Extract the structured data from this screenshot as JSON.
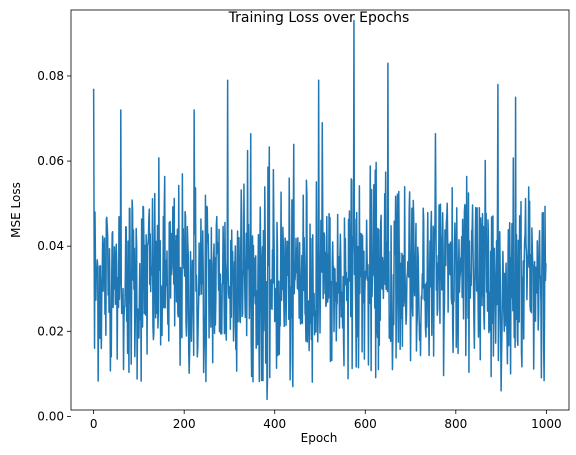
{
  "chart_data": {
    "type": "line",
    "title": "Training Loss over Epochs",
    "xlabel": "Epoch",
    "ylabel": "MSE Loss",
    "xlim": [
      -50,
      1050
    ],
    "ylim": [
      0.0015,
      0.0955
    ],
    "x_ticks": [
      0,
      200,
      400,
      600,
      800,
      1000
    ],
    "y_ticks": [
      0.0,
      0.02,
      0.04,
      0.06,
      0.08
    ],
    "y_tick_labels": [
      "0.00",
      "0.02",
      "0.04",
      "0.06",
      "0.08"
    ],
    "grid": false,
    "legend": "none",
    "series": [
      {
        "color": "#1f77b4",
        "n_points": 1000,
        "x_start": 0,
        "x_step": 1,
        "base_mean": 0.032,
        "known_points": [
          {
            "x": 0,
            "y": 0.077
          },
          {
            "x": 2,
            "y": 0.016
          },
          {
            "x": 60,
            "y": 0.072
          },
          {
            "x": 222,
            "y": 0.072
          },
          {
            "x": 296,
            "y": 0.079
          },
          {
            "x": 383,
            "y": 0.004
          },
          {
            "x": 440,
            "y": 0.007
          },
          {
            "x": 497,
            "y": 0.079
          },
          {
            "x": 575,
            "y": 0.093
          },
          {
            "x": 650,
            "y": 0.083
          },
          {
            "x": 893,
            "y": 0.078
          },
          {
            "x": 900,
            "y": 0.006
          },
          {
            "x": 932,
            "y": 0.075
          },
          {
            "x": 999,
            "y": 0.036
          }
        ]
      }
    ]
  }
}
